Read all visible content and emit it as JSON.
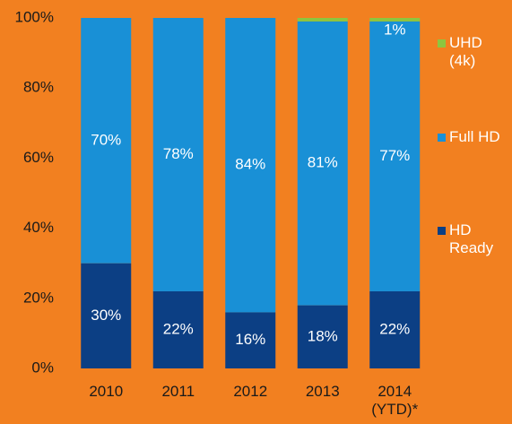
{
  "chart_data": {
    "type": "stacked_bar",
    "categories": [
      "2010",
      "2011",
      "2012",
      "2013",
      "2014 (YTD)*"
    ],
    "series": [
      {
        "name": "HD Ready",
        "color": "#0c3f84",
        "values": [
          30,
          22,
          16,
          18,
          22
        ],
        "value_labels": [
          "30%",
          "22%",
          "16%",
          "18%",
          "22%"
        ]
      },
      {
        "name": "Full HD",
        "color": "#1990d6",
        "values": [
          70,
          78,
          84,
          81,
          77
        ],
        "value_labels": [
          "70%",
          "78%",
          "84%",
          "81%",
          "77%"
        ]
      },
      {
        "name": "UHD (4k)",
        "color": "#8dc63f",
        "values": [
          0,
          0,
          0,
          1,
          1
        ],
        "value_labels": [
          null,
          null,
          null,
          null,
          "1%"
        ]
      }
    ],
    "ylim": [
      0,
      100
    ],
    "yticks": [
      {
        "value": 0,
        "label": "0%"
      },
      {
        "value": 20,
        "label": "20%"
      },
      {
        "value": 40,
        "label": "40%"
      },
      {
        "value": 60,
        "label": "60%"
      },
      {
        "value": 80,
        "label": "80%"
      },
      {
        "value": 100,
        "label": "100%"
      }
    ]
  }
}
